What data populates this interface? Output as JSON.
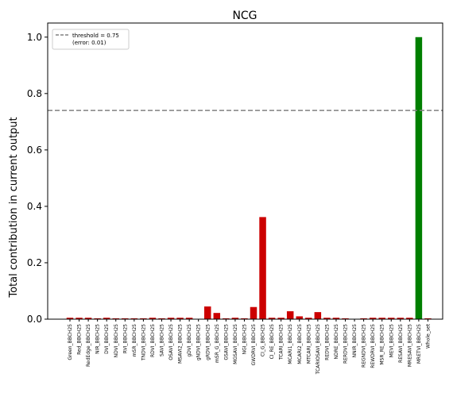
{
  "chart_data": {
    "type": "bar",
    "title": "NCG",
    "xlabel": "",
    "ylabel": "Total contribution in current output",
    "ylim": [
      0,
      1.05
    ],
    "yticks": [
      0.0,
      0.2,
      0.4,
      0.6,
      0.8,
      1.0
    ],
    "ytick_labels": [
      "0.0",
      "0.2",
      "0.4",
      "0.6",
      "0.8",
      "1.0"
    ],
    "grid": false,
    "legend": {
      "position": "top-left",
      "entries": [
        "threshold = 0.75",
        "(error: 0.01)"
      ]
    },
    "threshold": {
      "value": 0.74,
      "color": "#808080",
      "style": "dashed"
    },
    "colors": {
      "below_threshold": "#cc0000",
      "above_threshold": "#007f00"
    },
    "categories": [
      "Green_BBCH25",
      "Red_BBCH25",
      "RedEdge_BBCH25",
      "NIR_BBCH25",
      "DVI_BBCH25",
      "NDVI_BBCH25",
      "RVI_BBCH25",
      "mSR_BBCH25",
      "TNDVI_BBCH25",
      "RDVI_BBCH25",
      "SAVI_BBCH25",
      "OSAVI_BBCH25",
      "MSAVI2_BBCH25",
      "gDVI_BBCH25",
      "gNDVI_BBCH25",
      "gRDVI_BBCH25",
      "mSR_G_BBCH25",
      "GSAVI_BBCH25",
      "MGSAVI_BBCH25",
      "NGI_BBCH25",
      "GWDRVI_BBCH25",
      "CI_G_BBCH25",
      "CI_RE_BBCH25",
      "TCARI_BBCH25",
      "MCARI1_BBCH25",
      "MCARI2_BBCH25",
      "MTCARI_BBCH25",
      "TCARIOSAVI_BBCH25",
      "REDVI_BBCH25",
      "NDRE_BBCH25",
      "RERDVI_BBCH25",
      "NNIR_BBCH25",
      "REGNDVI_BBCH25",
      "REWDRVI_BBCH25",
      "MSR_RE_BBCH25",
      "MEVI_BBCH25",
      "RESAVI_BBCH25",
      "MRESAVI_BBCH25",
      "MRETVI_BBCH25",
      "Whole_set"
    ],
    "values": [
      0.005,
      0.005,
      0.005,
      0.003,
      0.005,
      0.003,
      0.003,
      0.003,
      0.003,
      0.005,
      0.003,
      0.005,
      0.005,
      0.005,
      0.001,
      0.045,
      0.022,
      0.003,
      0.005,
      0.003,
      0.043,
      0.362,
      0.005,
      0.005,
      0.028,
      0.01,
      0.005,
      0.025,
      0.005,
      0.005,
      0.003,
      0.001,
      0.003,
      0.005,
      0.005,
      0.005,
      0.005,
      0.005,
      1.0,
      0.003
    ]
  }
}
